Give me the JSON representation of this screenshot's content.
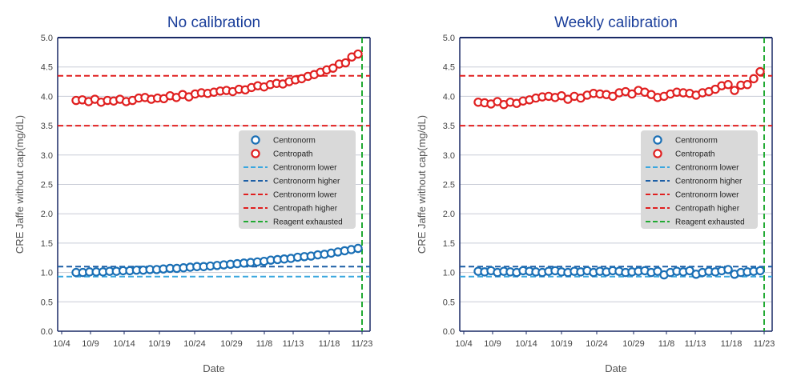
{
  "chart_data": [
    {
      "type": "scatter",
      "title": "No calibration",
      "xlabel": "Date",
      "ylabel": "CRE Jaffe without cap(mg/dL)",
      "ylim": [
        0,
        5
      ],
      "yticks": [
        "0.0",
        "0.5",
        "1.0",
        "1.5",
        "2.0",
        "2.5",
        "3.0",
        "3.5",
        "4.0",
        "4.5",
        "5.0"
      ],
      "xticks": [
        "10/4",
        "10/9",
        "10/14",
        "10/19",
        "10/24",
        "10/29",
        "11/8",
        "11/13",
        "11/18",
        "11/23"
      ],
      "grid": true,
      "legend_position": "right",
      "series": [
        {
          "name": "Centronorm",
          "kind": "points",
          "color": "#1a6fb5",
          "values": [
            1.0,
            1.0,
            1.01,
            1.01,
            1.01,
            1.02,
            1.02,
            1.03,
            1.03,
            1.04,
            1.04,
            1.05,
            1.05,
            1.06,
            1.07,
            1.07,
            1.08,
            1.09,
            1.1,
            1.1,
            1.11,
            1.12,
            1.13,
            1.14,
            1.15,
            1.16,
            1.17,
            1.18,
            1.19,
            1.21,
            1.22,
            1.23,
            1.24,
            1.26,
            1.27,
            1.28,
            1.3,
            1.31,
            1.33,
            1.35,
            1.37,
            1.39,
            1.41
          ]
        },
        {
          "name": "Centropath",
          "kind": "points",
          "color": "#e02020",
          "values": [
            3.93,
            3.94,
            3.91,
            3.95,
            3.9,
            3.93,
            3.92,
            3.95,
            3.91,
            3.93,
            3.97,
            3.98,
            3.95,
            3.97,
            3.96,
            4.01,
            3.98,
            4.03,
            3.99,
            4.04,
            4.06,
            4.05,
            4.07,
            4.09,
            4.1,
            4.08,
            4.12,
            4.11,
            4.15,
            4.18,
            4.16,
            4.2,
            4.22,
            4.21,
            4.25,
            4.28,
            4.3,
            4.34,
            4.37,
            4.41,
            4.45,
            4.48,
            4.55,
            4.57,
            4.67,
            4.72
          ]
        },
        {
          "name": "Centronorm lower",
          "kind": "hline",
          "value": 0.93,
          "color": "#3aa7df"
        },
        {
          "name": "Centronorm higher",
          "kind": "hline",
          "value": 1.1,
          "color": "#1d5fa6"
        },
        {
          "name": "Centronorm lower",
          "kind": "hline",
          "value": 3.5,
          "color": "#e02020"
        },
        {
          "name": "Centropath higher",
          "kind": "hline",
          "value": 4.35,
          "color": "#e02020"
        },
        {
          "name": "Reagent exhausted",
          "kind": "vline",
          "at": "11/23",
          "color": "#22aa33"
        }
      ]
    },
    {
      "type": "scatter",
      "title": "Weekly calibration",
      "xlabel": "Date",
      "ylabel": "CRE Jaffe without cap(mg/dL)",
      "ylim": [
        0,
        5
      ],
      "yticks": [
        "0.0",
        "0.5",
        "1.0",
        "1.5",
        "2.0",
        "2.5",
        "3.0",
        "3.5",
        "4.0",
        "4.5",
        "5.0"
      ],
      "xticks": [
        "10/4",
        "10/9",
        "10/14",
        "10/19",
        "10/24",
        "10/29",
        "11/8",
        "11/13",
        "11/18",
        "11/23"
      ],
      "grid": true,
      "legend_position": "right",
      "series": [
        {
          "name": "Centronorm",
          "kind": "points",
          "color": "#1a6fb5",
          "values": [
            1.02,
            1.01,
            1.03,
            1.0,
            1.02,
            1.01,
            1.0,
            1.03,
            1.02,
            1.01,
            1.0,
            1.02,
            1.03,
            1.01,
            1.0,
            1.02,
            1.01,
            1.03,
            1.0,
            1.02,
            1.01,
            1.03,
            1.02,
            1.0,
            1.01,
            1.02,
            1.03,
            1.0,
            1.02,
            0.96,
            1.0,
            1.02,
            1.01,
            1.03,
            0.97,
            1.0,
            1.02,
            1.01,
            1.03,
            1.05,
            0.97,
            1.0,
            1.01,
            1.02,
            1.03
          ]
        },
        {
          "name": "Centropath",
          "kind": "points",
          "color": "#e02020",
          "values": [
            3.9,
            3.89,
            3.87,
            3.91,
            3.86,
            3.9,
            3.88,
            3.92,
            3.94,
            3.97,
            3.99,
            4.0,
            3.98,
            4.01,
            3.95,
            4.0,
            3.97,
            4.02,
            4.05,
            4.04,
            4.03,
            4.0,
            4.06,
            4.08,
            4.04,
            4.1,
            4.07,
            4.03,
            3.98,
            4.0,
            4.04,
            4.07,
            4.06,
            4.05,
            4.02,
            4.06,
            4.08,
            4.12,
            4.18,
            4.2,
            4.1,
            4.19,
            4.2,
            4.3,
            4.42
          ]
        },
        {
          "name": "Centronorm lower",
          "kind": "hline",
          "value": 0.93,
          "color": "#3aa7df"
        },
        {
          "name": "Centronorm higher",
          "kind": "hline",
          "value": 1.1,
          "color": "#1d5fa6"
        },
        {
          "name": "Centronorm lower",
          "kind": "hline",
          "value": 3.5,
          "color": "#e02020"
        },
        {
          "name": "Centropath higher",
          "kind": "hline",
          "value": 4.35,
          "color": "#e02020"
        },
        {
          "name": "Reagent exhausted",
          "kind": "vline",
          "at": "11/23",
          "color": "#22aa33"
        }
      ]
    }
  ]
}
